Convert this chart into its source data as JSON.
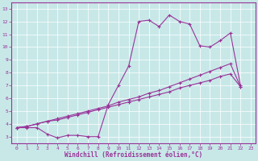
{
  "xlabel": "Windchill (Refroidissement éolien,°C)",
  "background_color": "#c8e8e8",
  "line_color": "#993399",
  "xlim": [
    -0.5,
    23.5
  ],
  "ylim": [
    2.5,
    13.5
  ],
  "xticks": [
    0,
    1,
    2,
    3,
    4,
    5,
    6,
    7,
    8,
    9,
    10,
    11,
    12,
    13,
    14,
    15,
    16,
    17,
    18,
    19,
    20,
    21,
    22,
    23
  ],
  "yticks": [
    3,
    4,
    5,
    6,
    7,
    8,
    9,
    10,
    11,
    12,
    13
  ],
  "line1_x": [
    0,
    1,
    2,
    3,
    4,
    5,
    6,
    7,
    8,
    9,
    10,
    11,
    12,
    13,
    14,
    15,
    16,
    17,
    18,
    19,
    20,
    21,
    22
  ],
  "line1_y": [
    3.7,
    3.7,
    3.7,
    3.2,
    2.9,
    3.1,
    3.1,
    3.0,
    3.0,
    5.5,
    7.0,
    8.5,
    12.0,
    12.1,
    11.6,
    12.5,
    12.0,
    11.8,
    10.1,
    10.0,
    10.5,
    11.1,
    7.0
  ],
  "line2_x": [
    0,
    1,
    2,
    3,
    4,
    5,
    6,
    7,
    8,
    9,
    10,
    11,
    12,
    13,
    14,
    15,
    16,
    17,
    18,
    19,
    20,
    21,
    22
  ],
  "line2_y": [
    3.7,
    3.8,
    4.0,
    4.2,
    4.3,
    4.5,
    4.7,
    4.9,
    5.1,
    5.3,
    5.5,
    5.7,
    5.9,
    6.1,
    6.3,
    6.5,
    6.8,
    7.0,
    7.2,
    7.4,
    7.7,
    7.9,
    6.9
  ],
  "line3_x": [
    0,
    1,
    2,
    3,
    4,
    5,
    6,
    7,
    8,
    9,
    10,
    11,
    12,
    13,
    14,
    15,
    16,
    17,
    18,
    19,
    20,
    21,
    22
  ],
  "line3_y": [
    3.7,
    3.8,
    4.0,
    4.2,
    4.4,
    4.6,
    4.8,
    5.0,
    5.2,
    5.4,
    5.7,
    5.9,
    6.1,
    6.4,
    6.6,
    6.9,
    7.2,
    7.5,
    7.8,
    8.1,
    8.4,
    8.7,
    6.9
  ]
}
